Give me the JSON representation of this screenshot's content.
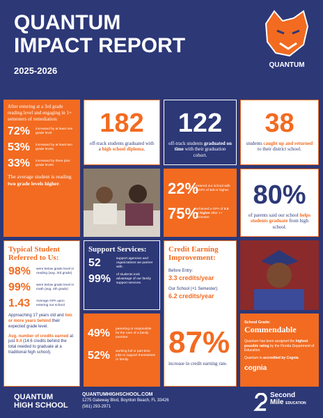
{
  "header": {
    "title_line1": "QUANTUM",
    "title_line2": "IMPACT REPORT",
    "years": "2025-2026",
    "logo_text": "QUANTUM"
  },
  "remediation": {
    "intro": "After entering at a 3rd grade reading level and engaging in 1+ semesters of remediation:",
    "stats": [
      {
        "value": "72%",
        "text": "increased by at least one grade level"
      },
      {
        "value": "53%",
        "text": "increased by at least two grade levels"
      },
      {
        "value": "33%",
        "text": "increased by three plus grade levels"
      }
    ],
    "summary": [
      "The average student is reading ",
      "two grade levels higher",
      "."
    ]
  },
  "offtrack": {
    "value": "182",
    "text": [
      "off-track students graduated with a ",
      "high school diploma",
      "."
    ]
  },
  "ontime": {
    "value": "122",
    "text": [
      "off-track students ",
      "graduated on time",
      " with their graduation cohort."
    ]
  },
  "caughtup": {
    "value": "38",
    "text": [
      "students ",
      "caught up and returned",
      " to their district school."
    ]
  },
  "entry": {
    "stats": [
      {
        "value": "22%",
        "text": [
          "entered our school with a GPA of ",
          "2.0",
          " or higher."
        ]
      },
      {
        "value": "75%",
        "text": [
          "achieved a GPA of ",
          "2.0 or higher",
          " after 1+ semester."
        ]
      }
    ]
  },
  "parents": {
    "value": "80%",
    "text": [
      "of parents said our school ",
      "helps students graduate",
      " from high school."
    ]
  },
  "typical": {
    "title": "Typical Student Referred to Us:",
    "stats": [
      {
        "value": "98%",
        "text": "were below grade level in reading (avg. 3rd grade)"
      },
      {
        "value": "99%",
        "text": "were below grade level in math (avg. 4th grade)"
      },
      {
        "value": "1.43",
        "text": "Average GPA upon entering our school"
      }
    ],
    "para1": [
      "Approaching 17 years old and ",
      "two or more years behind",
      " their expected grade level."
    ],
    "para2": [
      "Avg. number of credits earned",
      " at just ",
      "9.4",
      " (14.6 credits behind the total needed to graduate at a traditional high school)."
    ]
  },
  "support": {
    "title": "Support Services:",
    "stats": [
      {
        "value": "52",
        "text": "support agencies and organizations we partner with."
      },
      {
        "value": "99%",
        "text": "of students took advantage of our family support services."
      },
      {
        "value": "49%",
        "text": "parenting or responsible for the care of a family member."
      },
      {
        "value": "52%",
        "text": "working full or part-time jobs to support themselves or family."
      }
    ]
  },
  "credit": {
    "title": "Credit Earning Improvement:",
    "before_label": "Before Entry:",
    "before_value": "3.3 credits/year",
    "after_label": "Our School (+1 Semester):",
    "after_value": "6.2 credits/year",
    "value": "87%",
    "text": "increase in credit earning rate."
  },
  "grade": {
    "label": "School Grade:",
    "value": "Commendable",
    "text1": [
      "Quantum has been assigned the ",
      "highest possible rating",
      " by the Florida Department of Education."
    ],
    "text2": [
      "Quantum is ",
      "accredited by Cognia",
      "."
    ],
    "cognia": "cognia"
  },
  "footer": {
    "school_line1": "QUANTUM",
    "school_line2": "HIGH SCHOOL",
    "website": "QUANTUMHIGHSCHOOL.COM",
    "address": "1275 Gateway Blvd, Boynton Beach, FL 33426",
    "phone": "(561) 293-2971",
    "partner_line1": "Second",
    "partner_line2": "Mile",
    "partner_line3": "EDUCATION"
  }
}
